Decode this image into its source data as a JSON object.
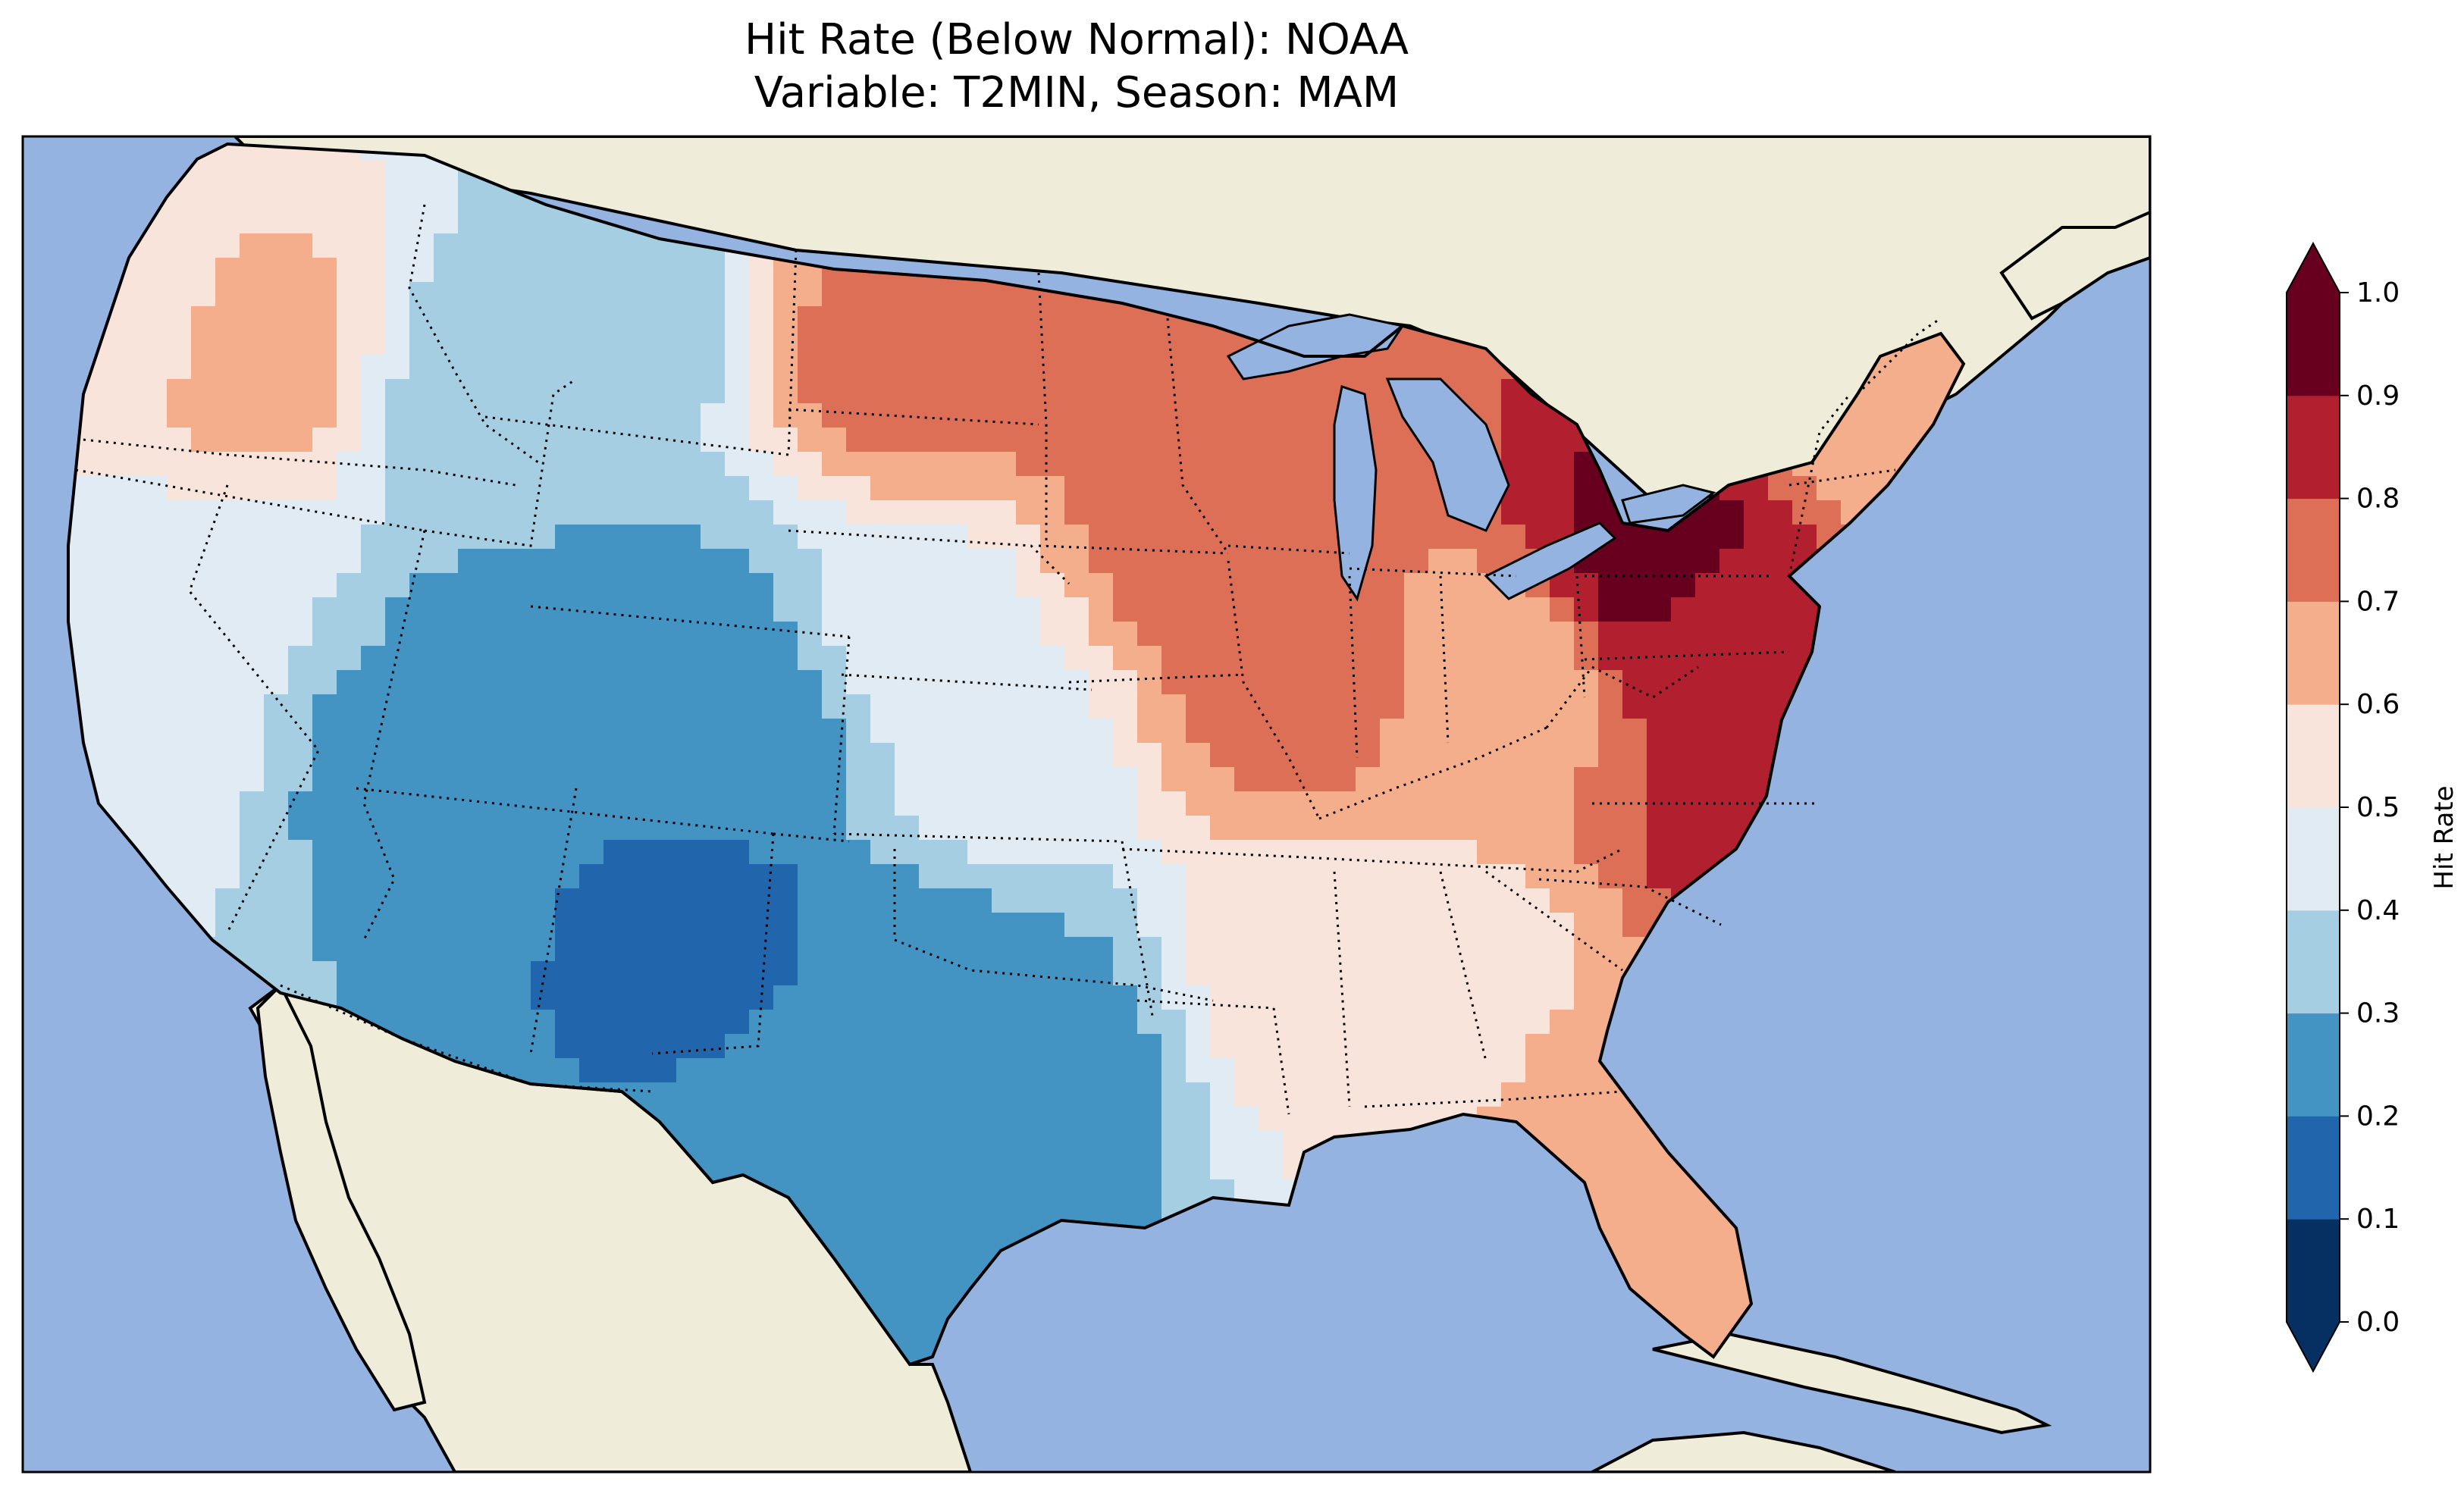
{
  "title": {
    "line1": "Hit Rate (Below Normal): NOAA",
    "line2": "Variable: T2MIN, Season: MAM"
  },
  "colors": {
    "ocean": "#95b3e0",
    "land": "#efedd9",
    "frame": "#000000"
  },
  "chart_data": {
    "type": "heatmap",
    "title": "Hit Rate (Below Normal): NOAA",
    "subtitle": "Variable: T2MIN, Season: MAM",
    "region": "Contiguous United States",
    "colorbar": {
      "label": "Hit Rate",
      "min": 0.0,
      "max": 1.0,
      "extend": "both",
      "ticks": [
        "0.0",
        "0.1",
        "0.2",
        "0.3",
        "0.4",
        "0.5",
        "0.6",
        "0.7",
        "0.8",
        "0.9",
        "1.0"
      ],
      "bins": [
        {
          "range": [
            0.0,
            0.1
          ],
          "color": "#053061"
        },
        {
          "range": [
            0.1,
            0.2
          ],
          "color": "#2166ac"
        },
        {
          "range": [
            0.2,
            0.3
          ],
          "color": "#4393c3"
        },
        {
          "range": [
            0.3,
            0.4
          ],
          "color": "#a6cee3"
        },
        {
          "range": [
            0.4,
            0.5
          ],
          "color": "#e1ebf3"
        },
        {
          "range": [
            0.5,
            0.6
          ],
          "color": "#f8e4da"
        },
        {
          "range": [
            0.6,
            0.7
          ],
          "color": "#f4ae8c"
        },
        {
          "range": [
            0.7,
            0.8
          ],
          "color": "#dd6f56"
        },
        {
          "range": [
            0.8,
            0.9
          ],
          "color": "#b2202f"
        },
        {
          "range": [
            0.9,
            1.0
          ],
          "color": "#67001f"
        }
      ]
    },
    "regional_values": [
      {
        "region": "Pacific coast (Washington/Oregon)",
        "value": 0.55
      },
      {
        "region": "Oregon inland",
        "value": 0.65
      },
      {
        "region": "California / Nevada",
        "value": 0.45
      },
      {
        "region": "Idaho / Montana west",
        "value": 0.35
      },
      {
        "region": "Utah / Arizona",
        "value": 0.25
      },
      {
        "region": "Colorado",
        "value": 0.25
      },
      {
        "region": "New Mexico",
        "value": 0.15
      },
      {
        "region": "Texas central",
        "value": 0.25
      },
      {
        "region": "Oklahoma",
        "value": 0.25
      },
      {
        "region": "Kansas / Nebraska",
        "value": 0.45
      },
      {
        "region": "North Dakota / Minnesota",
        "value": 0.75
      },
      {
        "region": "Wisconsin / Iowa / Illinois",
        "value": 0.75
      },
      {
        "region": "Gulf coast / Southeast",
        "value": 0.55
      },
      {
        "region": "Florida",
        "value": 0.65
      },
      {
        "region": "Ohio Valley",
        "value": 0.65
      },
      {
        "region": "Mid-Atlantic / Pennsylvania",
        "value": 0.85
      },
      {
        "region": "Central Pennsylvania peak",
        "value": 0.95
      },
      {
        "region": "North Carolina coast",
        "value": 0.85
      },
      {
        "region": "New England",
        "value": 0.65
      }
    ]
  }
}
